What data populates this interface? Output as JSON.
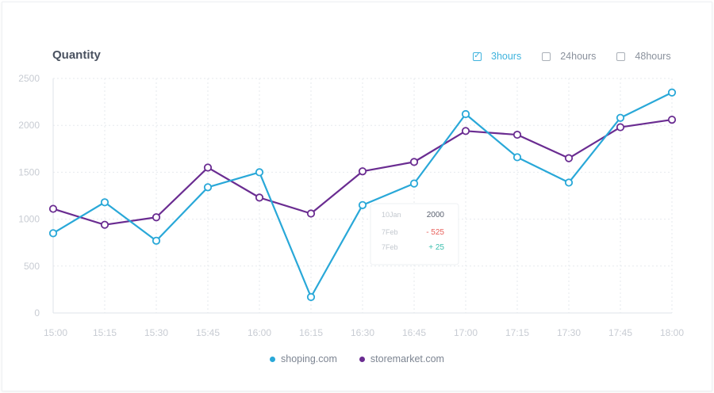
{
  "chart_data": {
    "type": "line",
    "title": "Quantity",
    "x": [
      "15:00",
      "15:15",
      "15:30",
      "15:45",
      "16:00",
      "16:15",
      "16:30",
      "16:45",
      "17:00",
      "17:15",
      "17:30",
      "17:45",
      "18:00"
    ],
    "yticks": [
      "0",
      "500",
      "1000",
      "1500",
      "2000",
      "2500"
    ],
    "ylim": [
      0,
      2500
    ],
    "grid": true,
    "legend_position": "bottom",
    "series": [
      {
        "name": "shoping.com",
        "color": "#29a8d8",
        "values": [
          850,
          1180,
          770,
          1340,
          1500,
          170,
          1150,
          1380,
          2120,
          1660,
          1390,
          2080,
          2350
        ]
      },
      {
        "name": "storemarket.com",
        "color": "#6a2c91",
        "values": [
          1110,
          940,
          1020,
          1550,
          1230,
          1060,
          1510,
          1610,
          1940,
          1900,
          1650,
          1980,
          2060
        ]
      }
    ],
    "tooltip": {
      "rows": [
        {
          "label": "10Jan",
          "value": "2000",
          "color": "#5a6170"
        },
        {
          "label": "7Feb",
          "value": "- 525",
          "color": "#e8615c"
        },
        {
          "label": "7Feb",
          "value": "+ 25",
          "color": "#3bbfae"
        }
      ]
    }
  },
  "filters": [
    {
      "label": "3hours",
      "checked": true,
      "check_mark": "✓"
    },
    {
      "label": "24hours",
      "checked": false,
      "check_mark": ""
    },
    {
      "label": "48hours",
      "checked": false,
      "check_mark": ""
    }
  ],
  "colors": {
    "accent": "#3fb3dd",
    "grid": "#e6e9ee"
  }
}
